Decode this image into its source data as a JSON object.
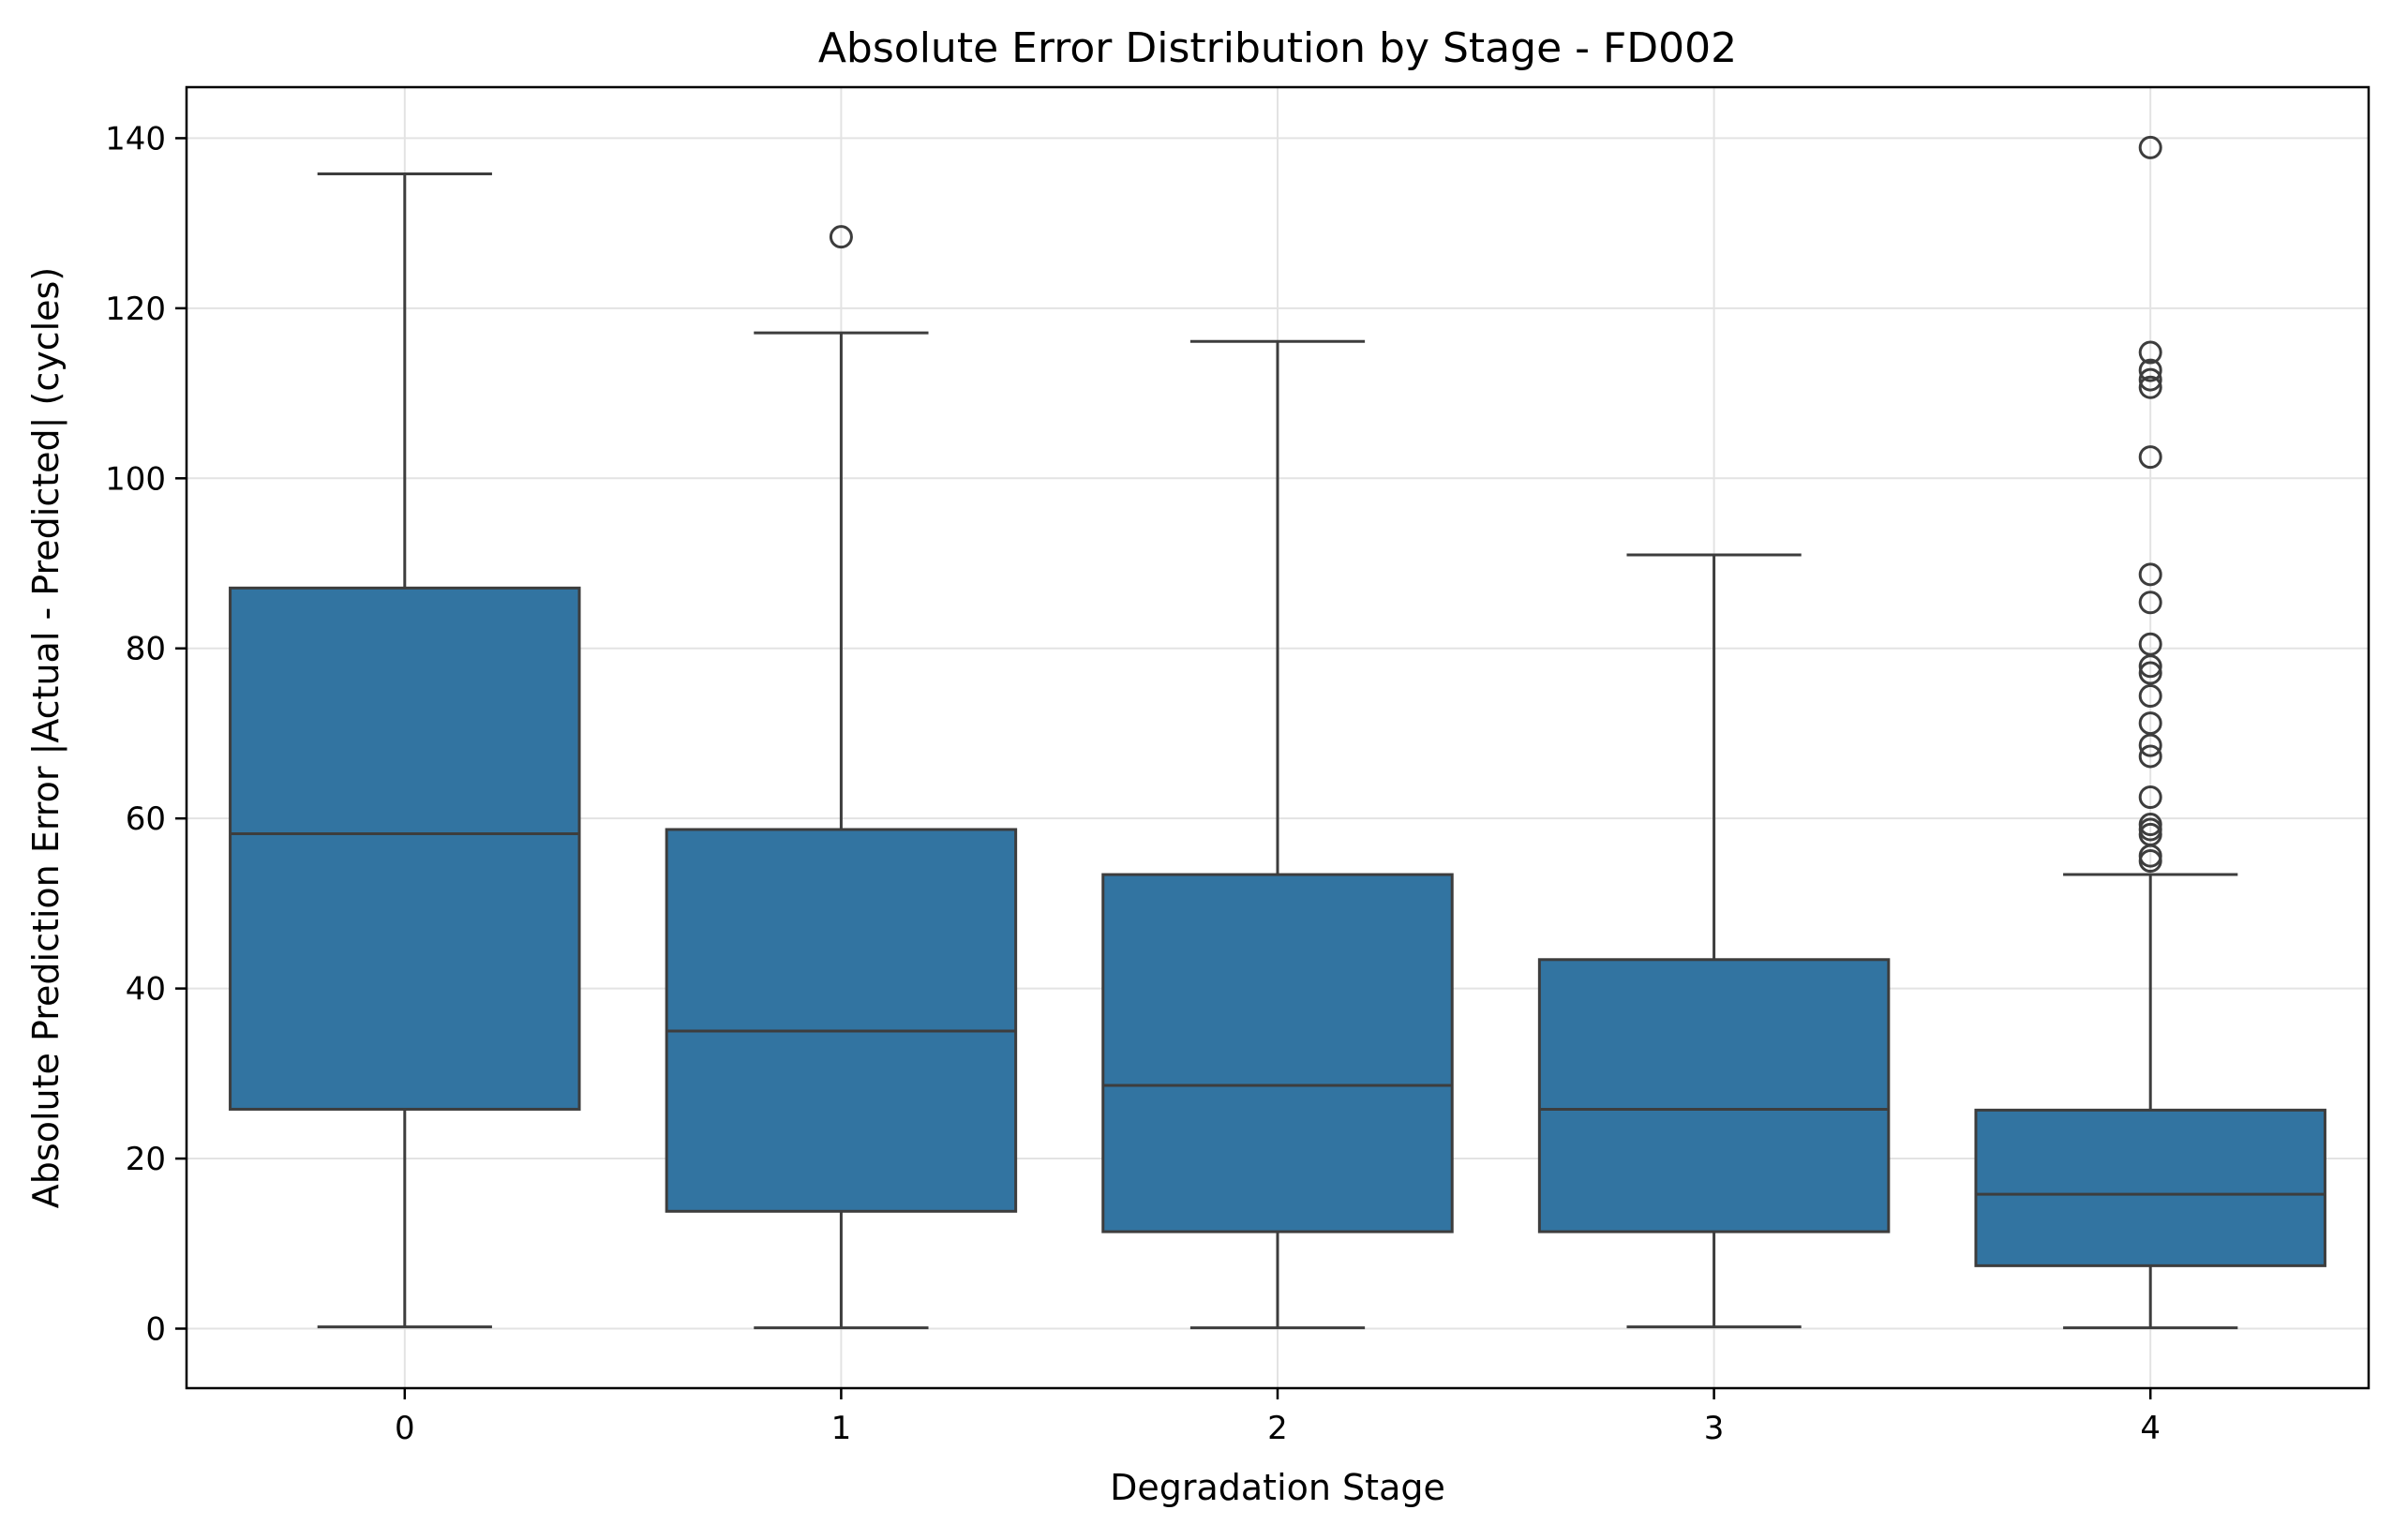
{
  "chart_data": {
    "type": "box",
    "title": "Absolute Error Distribution by Stage - FD002",
    "xlabel": "Degradation Stage",
    "ylabel": "Absolute Prediction Error |Actual - Predicted| (cycles)",
    "categories": [
      "0",
      "1",
      "2",
      "3",
      "4"
    ],
    "ylim": [
      -7,
      146
    ],
    "yticks": [
      0,
      20,
      40,
      60,
      80,
      100,
      120,
      140
    ],
    "grid": true,
    "box_color": "#3274a1",
    "line_color": "#3d3d3d",
    "boxes": [
      {
        "category": "0",
        "whisker_low": 0.2,
        "q1": 25.8,
        "median": 58.2,
        "q3": 87.1,
        "whisker_high": 135.8,
        "outliers": []
      },
      {
        "category": "1",
        "whisker_low": 0.1,
        "q1": 13.8,
        "median": 35.0,
        "q3": 58.7,
        "whisker_high": 117.1,
        "outliers": [
          128.4
        ]
      },
      {
        "category": "2",
        "whisker_low": 0.1,
        "q1": 11.4,
        "median": 28.6,
        "q3": 53.4,
        "whisker_high": 116.1,
        "outliers": []
      },
      {
        "category": "3",
        "whisker_low": 0.2,
        "q1": 11.4,
        "median": 25.8,
        "q3": 43.4,
        "whisker_high": 91.0,
        "outliers": []
      },
      {
        "category": "4",
        "whisker_low": 0.1,
        "q1": 7.4,
        "median": 15.8,
        "q3": 25.7,
        "whisker_high": 53.4,
        "outliers": [
          138.9,
          114.8,
          112.7,
          111.6,
          110.7,
          102.5,
          88.7,
          85.4,
          80.5,
          77.9,
          77.1,
          74.4,
          71.2,
          68.6,
          67.3,
          62.5,
          59.3,
          58.7,
          58.1,
          55.6,
          55.0
        ]
      }
    ]
  }
}
